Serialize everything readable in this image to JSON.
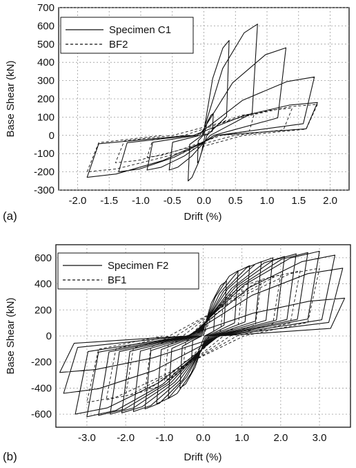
{
  "figure": {
    "panels": [
      {
        "tag": "(a)"
      },
      {
        "tag": "(b)"
      }
    ]
  },
  "chart_data": [
    {
      "type": "line",
      "xlabel": "Drift (%)",
      "ylabel": "Base Shear (kN)",
      "xlim": [
        -2.3,
        2.3
      ],
      "ylim": [
        -300,
        700
      ],
      "xticks": [
        -2.0,
        -1.5,
        -1.0,
        -0.5,
        0.0,
        0.5,
        1.0,
        1.5,
        2.0
      ],
      "xticklabels": [
        "-2.0",
        "-1.5",
        "-1.0",
        "-0.5",
        "0.0",
        "0.5",
        "1.0",
        "1.5",
        "2.0"
      ],
      "yticks": [
        -300,
        -200,
        -100,
        0,
        100,
        200,
        300,
        400,
        500,
        600,
        700
      ],
      "yticklabels": [
        "-300",
        "-200",
        "-100",
        "0",
        "100",
        "200",
        "300",
        "400",
        "500",
        "600",
        "700"
      ],
      "grid": true,
      "legend_position": "top-left",
      "series": [
        {
          "name": "Specimen C1",
          "style": "solid",
          "cycles": [
            {
              "amp_pos": 0.15,
              "peak_pos": 120,
              "amp_neg": -0.1,
              "peak_neg": -150
            },
            {
              "amp_pos": 0.4,
              "peak_pos": 520,
              "amp_neg": -0.25,
              "peak_neg": -250
            },
            {
              "amp_pos": 0.85,
              "peak_pos": 610,
              "amp_neg": -0.55,
              "peak_neg": -190
            },
            {
              "amp_pos": 1.3,
              "peak_pos": 480,
              "amp_neg": -0.9,
              "peak_neg": -190
            },
            {
              "amp_pos": 1.75,
              "peak_pos": 320,
              "amp_neg": -1.35,
              "peak_neg": -200
            },
            {
              "amp_pos": 1.8,
              "peak_pos": 180,
              "amp_neg": -1.85,
              "peak_neg": -230
            }
          ]
        },
        {
          "name": "BF2",
          "style": "dashed",
          "cycles": [
            {
              "amp_pos": 0.8,
              "peak_pos": 120,
              "amp_neg": -0.9,
              "peak_neg": -120
            },
            {
              "amp_pos": 1.4,
              "peak_pos": 150,
              "amp_neg": -1.4,
              "peak_neg": -150
            },
            {
              "amp_pos": 1.8,
              "peak_pos": 170,
              "amp_neg": -1.85,
              "peak_neg": -200
            }
          ]
        }
      ]
    },
    {
      "type": "line",
      "xlabel": "Drift (%)",
      "ylabel": "Base Shear (kN)",
      "xlim": [
        -3.8,
        3.8
      ],
      "ylim": [
        -700,
        700
      ],
      "xticks": [
        -3.0,
        -2.0,
        -1.0,
        0.0,
        1.0,
        2.0,
        3.0
      ],
      "xticklabels": [
        "-3.0",
        "-2.0",
        "-1.0",
        "0.0",
        "1.0",
        "2.0",
        "3.0"
      ],
      "yticks": [
        -600,
        -400,
        -200,
        0,
        200,
        400,
        600
      ],
      "yticklabels": [
        "-600",
        "-400",
        "-200",
        "0",
        "200",
        "400",
        "600"
      ],
      "grid": true,
      "legend_position": "top-left",
      "series": [
        {
          "name": "Specimen F2",
          "style": "solid",
          "cycles": [
            {
              "amp_pos": 0.3,
              "peak_pos": 180,
              "amp_neg": -0.3,
              "peak_neg": -180
            },
            {
              "amp_pos": 0.6,
              "peak_pos": 420,
              "amp_neg": -0.6,
              "peak_neg": -400
            },
            {
              "amp_pos": 0.9,
              "peak_pos": 500,
              "amp_neg": -0.9,
              "peak_neg": -480
            },
            {
              "amp_pos": 1.2,
              "peak_pos": 540,
              "amp_neg": -1.2,
              "peak_neg": -520
            },
            {
              "amp_pos": 1.5,
              "peak_pos": 570,
              "amp_neg": -1.5,
              "peak_neg": -560
            },
            {
              "amp_pos": 1.8,
              "peak_pos": 600,
              "amp_neg": -1.8,
              "peak_neg": -580
            },
            {
              "amp_pos": 2.1,
              "peak_pos": 610,
              "amp_neg": -2.1,
              "peak_neg": -590
            },
            {
              "amp_pos": 2.4,
              "peak_pos": 630,
              "amp_neg": -2.4,
              "peak_neg": -600
            },
            {
              "amp_pos": 2.7,
              "peak_pos": 640,
              "amp_neg": -2.7,
              "peak_neg": -610
            },
            {
              "amp_pos": 3.0,
              "peak_pos": 650,
              "amp_neg": -3.0,
              "peak_neg": -620
            },
            {
              "amp_pos": 3.4,
              "peak_pos": 620,
              "amp_neg": -3.3,
              "peak_neg": -600
            },
            {
              "amp_pos": 3.6,
              "peak_pos": 520,
              "amp_neg": -3.6,
              "peak_neg": -440
            },
            {
              "amp_pos": 3.65,
              "peak_pos": 290,
              "amp_neg": -3.7,
              "peak_neg": -280
            }
          ]
        },
        {
          "name": "BF1",
          "style": "dashed",
          "cycles": [
            {
              "amp_pos": 0.5,
              "peak_pos": 200,
              "amp_neg": -0.5,
              "peak_neg": -200
            },
            {
              "amp_pos": 1.0,
              "peak_pos": 360,
              "amp_neg": -1.0,
              "peak_neg": -340
            },
            {
              "amp_pos": 1.5,
              "peak_pos": 430,
              "amp_neg": -1.5,
              "peak_neg": -420
            },
            {
              "amp_pos": 2.0,
              "peak_pos": 470,
              "amp_neg": -2.0,
              "peak_neg": -460
            },
            {
              "amp_pos": 2.5,
              "peak_pos": 500,
              "amp_neg": -2.5,
              "peak_neg": -490
            },
            {
              "amp_pos": 3.0,
              "peak_pos": 520,
              "amp_neg": -3.0,
              "peak_neg": -510
            }
          ]
        }
      ]
    }
  ]
}
